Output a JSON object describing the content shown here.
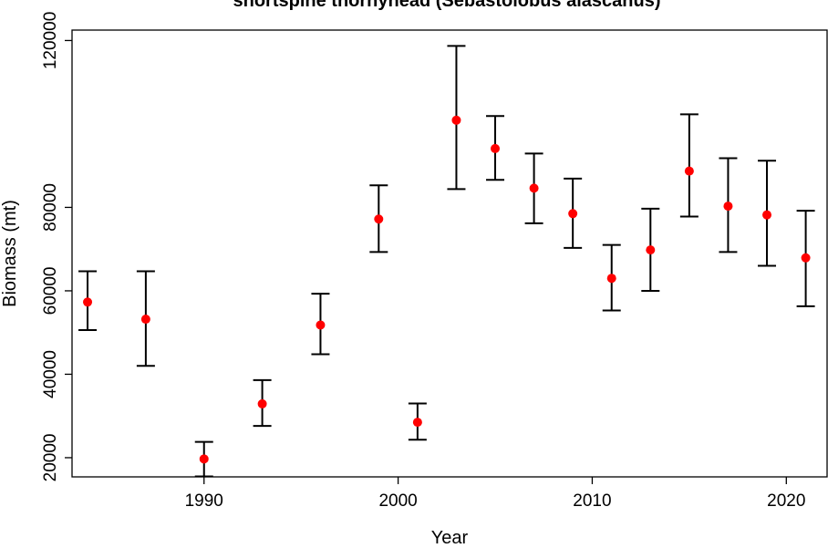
{
  "chart_data": {
    "type": "scatter",
    "title": "shortspine thornyhead (Sebastolobus alascanus)",
    "xlabel": "Year",
    "ylabel": "Biomass (mt)",
    "xlim": [
      1983.2,
      2022.1
    ],
    "ylim": [
      15400,
      122500
    ],
    "x_ticks": [
      1990,
      2000,
      2010,
      2020
    ],
    "y_ticks": [
      20000,
      40000,
      60000,
      80000,
      120000
    ],
    "grid": false,
    "legend": "none",
    "colors": {
      "point": "#ff0000",
      "errorbar": "#000000",
      "frame": "#000000"
    },
    "series": [
      {
        "x": [
          1984,
          1987,
          1990,
          1993,
          1996,
          1999,
          2001,
          2003,
          2005,
          2007,
          2009,
          2011,
          2013,
          2015,
          2017,
          2019,
          2021
        ],
        "y": [
          57300,
          53200,
          19700,
          32900,
          51800,
          77200,
          28500,
          100900,
          94100,
          84600,
          78500,
          63000,
          69800,
          88700,
          80300,
          78200,
          67900
        ],
        "lower": [
          50600,
          42000,
          15500,
          27600,
          44800,
          69300,
          24300,
          84400,
          86600,
          76200,
          70300,
          55300,
          60000,
          77800,
          69300,
          66000,
          56300
        ],
        "upper": [
          64700,
          64700,
          23800,
          38600,
          59300,
          85300,
          33000,
          118700,
          101900,
          92900,
          86900,
          71000,
          79700,
          102300,
          91800,
          91200,
          79200
        ]
      }
    ]
  }
}
